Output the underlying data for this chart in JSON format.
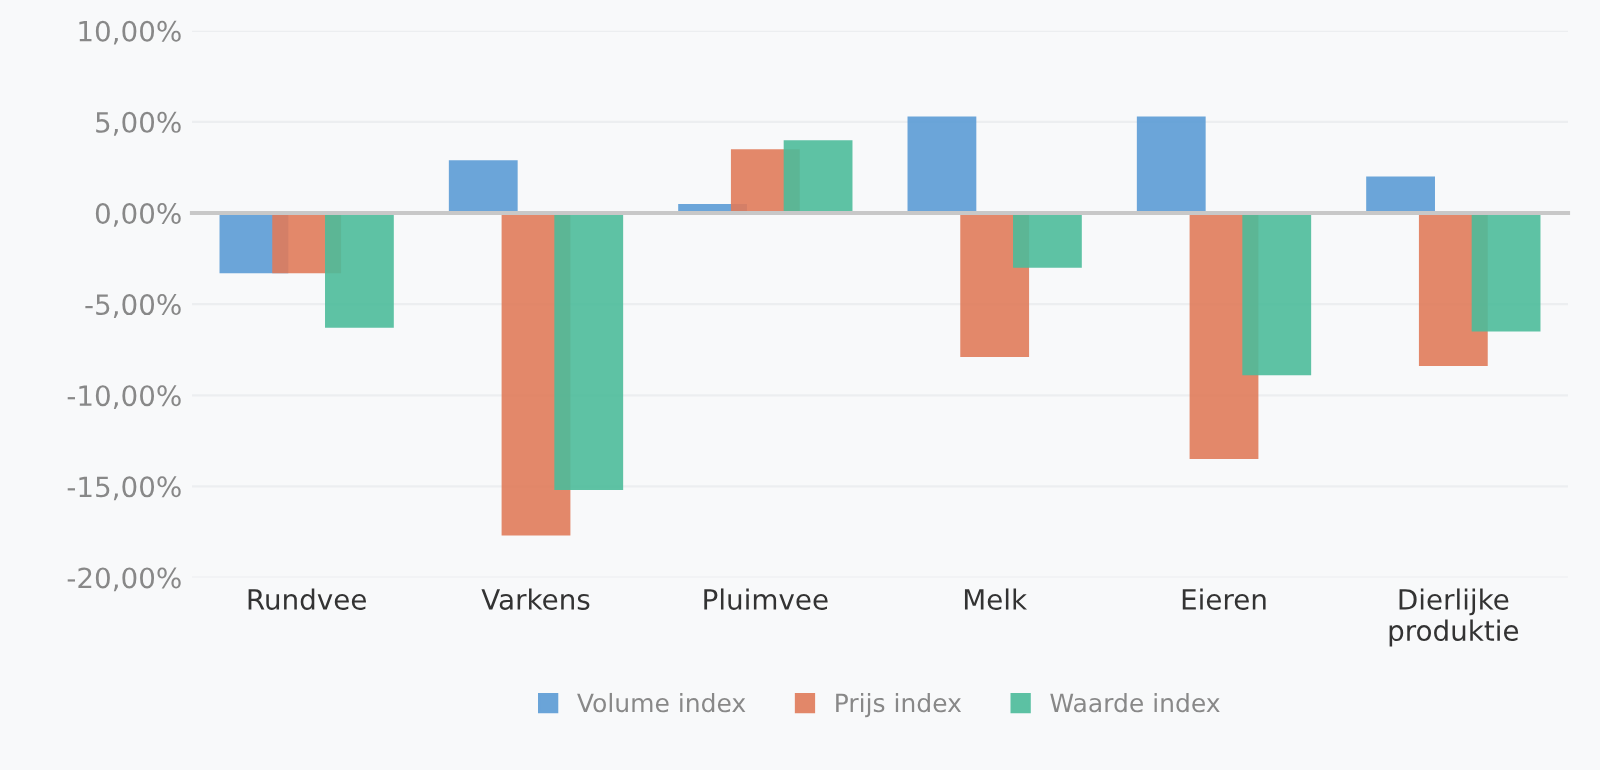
{
  "chart_data": {
    "type": "bar",
    "categories": [
      "Rundvee",
      "Varkens",
      "Pluimvee",
      "Melk",
      "Eieren",
      "Dierlijke\nproduktie"
    ],
    "series": [
      {
        "name": "Volume index",
        "color": "#5b9bd5",
        "values": [
          -3.3,
          2.9,
          0.5,
          5.3,
          5.3,
          2.0
        ]
      },
      {
        "name": "Prijs index",
        "color": "#e07b5a",
        "values": [
          -3.3,
          -17.7,
          3.5,
          -7.9,
          -13.5,
          -8.4
        ]
      },
      {
        "name": "Waarde index",
        "color": "#4cbb9a",
        "values": [
          -6.3,
          -15.2,
          4.0,
          -3.0,
          -8.9,
          -6.5
        ]
      }
    ],
    "ylim": [
      -20,
      10
    ],
    "yticks": [
      {
        "value": -20,
        "label": "-20,00%"
      },
      {
        "value": -15,
        "label": "-15,00%"
      },
      {
        "value": -10,
        "label": "-10,00%"
      },
      {
        "value": -5,
        "label": "-5,00%"
      },
      {
        "value": 0,
        "label": "0,00%"
      },
      {
        "value": 5,
        "label": "5,00%"
      },
      {
        "value": 10,
        "label": "10,00%"
      }
    ],
    "grid": "y",
    "legend": "bottom"
  }
}
